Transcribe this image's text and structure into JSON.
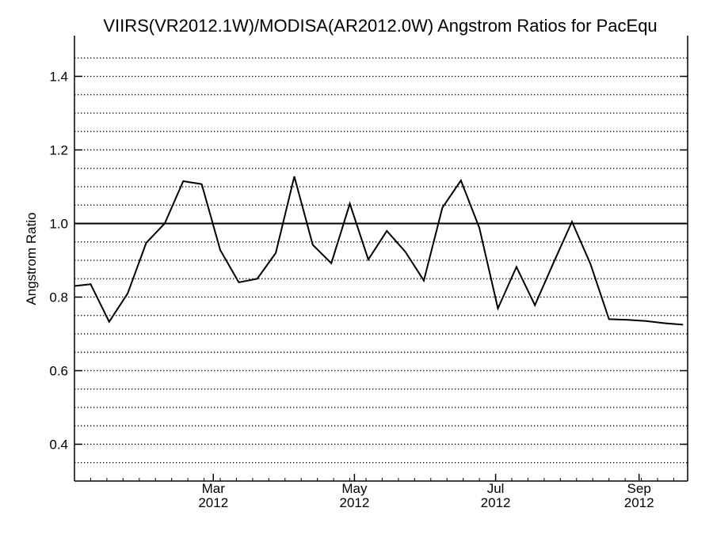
{
  "chart_data": {
    "type": "line",
    "title": "VIIRS(VR2012.1W)/MODISA(AR2012.0W)  Angstrom Ratios for PacEqu",
    "xlabel": "",
    "ylabel": "Angstrom Ratio",
    "xlim": [
      "2012-01-01",
      "2012-09-22"
    ],
    "ylim": [
      0.3,
      1.5
    ],
    "y_ticks": [
      0.4,
      0.6,
      0.8,
      1.0,
      1.2,
      1.4
    ],
    "y_tick_labels": [
      "0.4",
      "0.6",
      "0.8",
      "1.0",
      "1.2",
      "1.4"
    ],
    "x_ticks": [
      {
        "date": "2012-03-01",
        "month": "Mar",
        "year": "2012"
      },
      {
        "date": "2012-05-01",
        "month": "May",
        "year": "2012"
      },
      {
        "date": "2012-07-01",
        "month": "Jul",
        "year": "2012"
      },
      {
        "date": "2012-09-01",
        "month": "Sep",
        "year": "2012"
      }
    ],
    "grid": "horizontal-dotted",
    "reference_line": 1.0,
    "series": [
      {
        "x": [
          "2012-01-01",
          "2012-01-08",
          "2012-01-16",
          "2012-01-24",
          "2012-02-01",
          "2012-02-09",
          "2012-02-17",
          "2012-02-25",
          "2012-03-04",
          "2012-03-12",
          "2012-03-20",
          "2012-03-28",
          "2012-04-05",
          "2012-04-13",
          "2012-04-21",
          "2012-04-29",
          "2012-05-07",
          "2012-05-15",
          "2012-05-23",
          "2012-05-31",
          "2012-06-08",
          "2012-06-16",
          "2012-06-24",
          "2012-07-02",
          "2012-07-10",
          "2012-07-18",
          "2012-07-26",
          "2012-08-03",
          "2012-08-11",
          "2012-08-19",
          "2012-08-27",
          "2012-09-04",
          "2012-09-12",
          "2012-09-20"
        ],
        "y": [
          0.83,
          0.835,
          0.733,
          0.81,
          0.947,
          1.0,
          1.115,
          1.107,
          0.928,
          0.84,
          0.85,
          0.92,
          1.128,
          0.942,
          0.892,
          1.054,
          0.902,
          0.98,
          0.923,
          0.845,
          1.043,
          1.117,
          0.988,
          0.769,
          0.882,
          0.778,
          0.893,
          1.005,
          0.89,
          0.74,
          0.738,
          0.735,
          0.729,
          0.725
        ]
      }
    ]
  }
}
